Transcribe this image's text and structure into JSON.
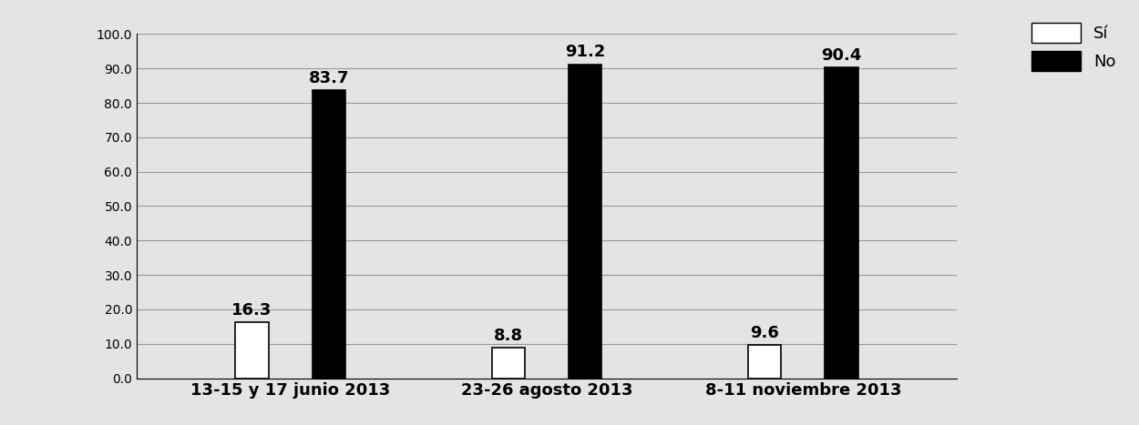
{
  "chart_data": {
    "type": "bar",
    "categories": [
      "13-15 y 17 junio 2013",
      "23-26 agosto 2013",
      "8-11 noviembre 2013"
    ],
    "series": [
      {
        "name": "Sí",
        "color": "#ffffff",
        "values": [
          16.3,
          8.8,
          9.6
        ]
      },
      {
        "name": "No",
        "color": "#000000",
        "values": [
          83.7,
          91.2,
          90.4
        ]
      }
    ],
    "ylim": [
      0,
      100
    ],
    "yticks": [
      {
        "value": 0,
        "label": "0.0"
      },
      {
        "value": 10,
        "label": "10.0"
      },
      {
        "value": 20,
        "label": "20.0"
      },
      {
        "value": 30,
        "label": "30.0"
      },
      {
        "value": 40,
        "label": "40.0"
      },
      {
        "value": 50,
        "label": "50.0"
      },
      {
        "value": 60,
        "label": "60.0"
      },
      {
        "value": 70,
        "label": "70.0"
      },
      {
        "value": 80,
        "label": "80.0"
      },
      {
        "value": 90,
        "label": "90.0"
      },
      {
        "value": 100,
        "label": "100.0"
      }
    ],
    "grid": true,
    "legend": "upper right",
    "data_labels": true
  }
}
